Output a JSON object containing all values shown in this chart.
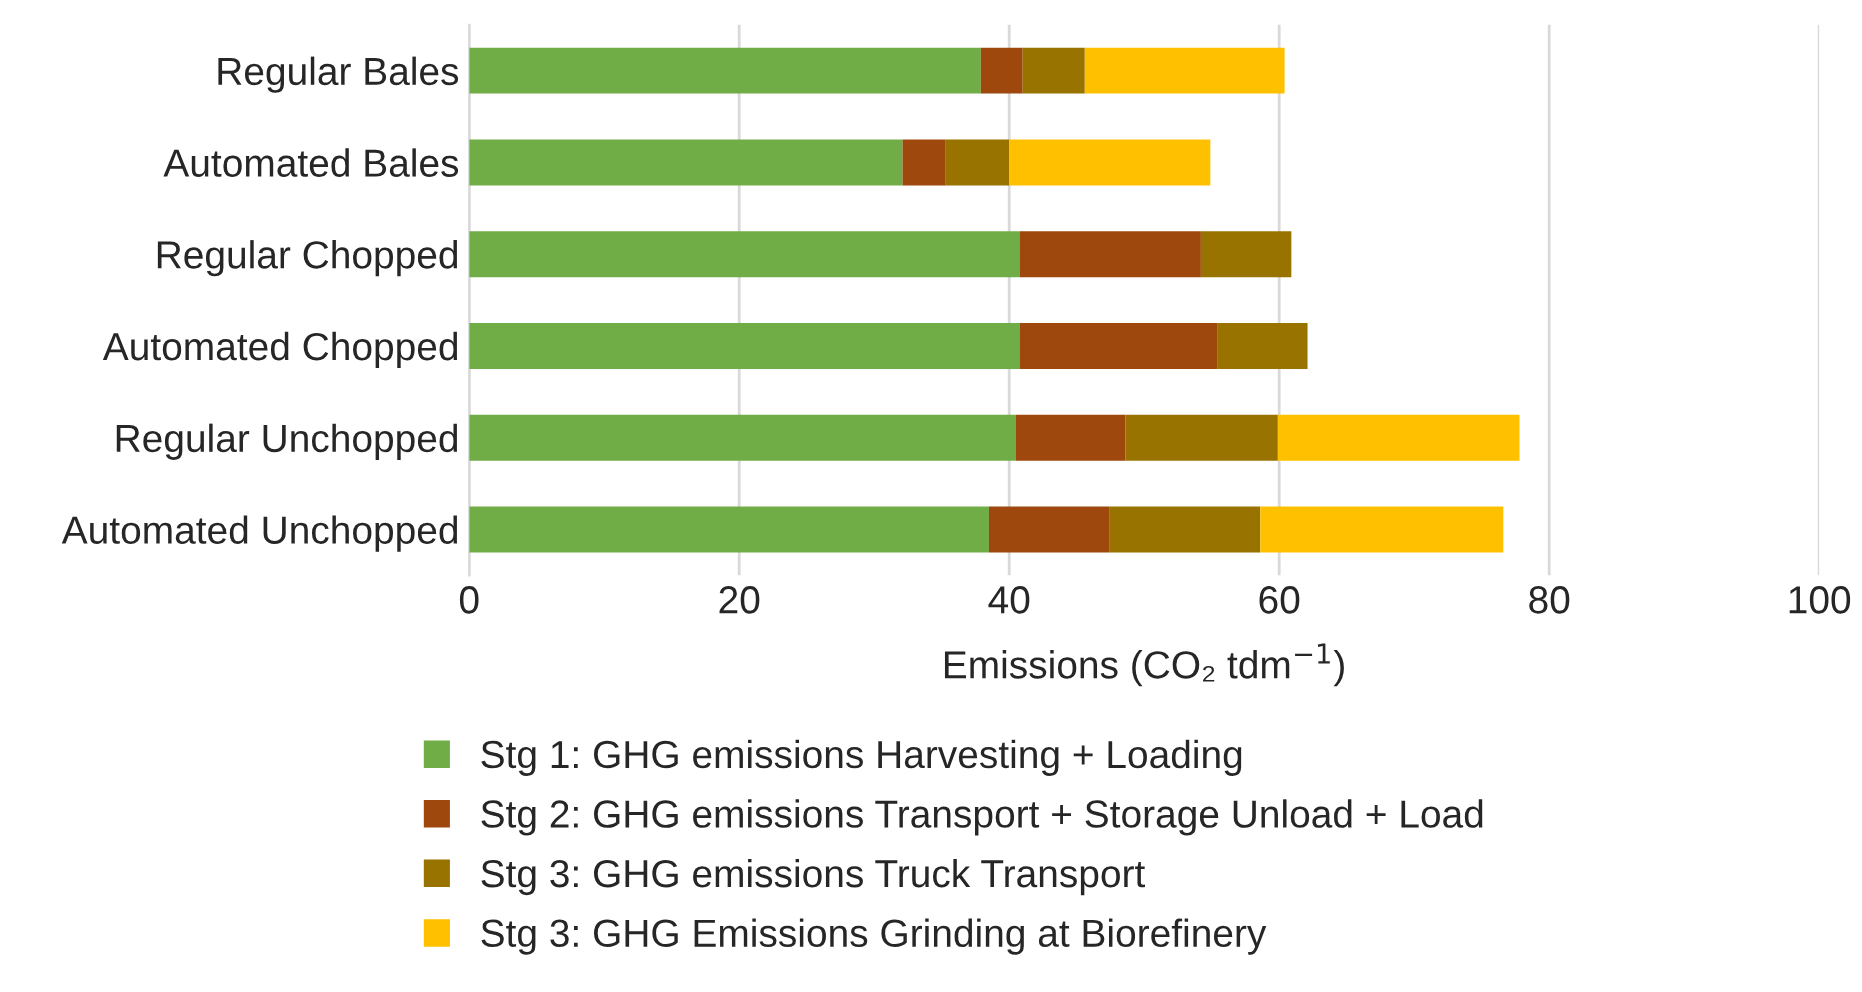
{
  "chart_data": {
    "type": "bar",
    "orientation": "horizontal",
    "stacked": true,
    "xlabel": "Emissions (CO₂ tdm$^{−1}$)",
    "categories": [
      "Regular Bales",
      "Automated Bales",
      "Regular Chopped",
      "Automated Chopped",
      "Regular Unchopped",
      "Automated Unchopped"
    ],
    "series": [
      {
        "name": "Stg 1: GHG emissions Harvesting + Loading",
        "color": "#70ad47",
        "values": [
          37.9,
          32.1,
          40.8,
          40.8,
          40.5,
          38.5
        ]
      },
      {
        "name": "Stg 2: GHG emissions Transport + Storage Unload + Load",
        "color": "#9e480e",
        "values": [
          3.1,
          3.2,
          13.4,
          14.6,
          8.1,
          8.9
        ]
      },
      {
        "name": "Stg 3: GHG emissions Truck Transport",
        "color": "#997300",
        "values": [
          4.6,
          4.7,
          6.7,
          6.7,
          11.3,
          11.2
        ]
      },
      {
        "name": "Stg 3: GHG Emissions Grinding at Biorefinery",
        "color": "#ffc000",
        "values": [
          14.8,
          14.9,
          null,
          null,
          17.9,
          18.0
        ]
      }
    ],
    "xlim": [
      0,
      100
    ],
    "xticks": [
      0,
      20,
      40,
      60,
      80,
      100
    ],
    "grid": "x",
    "legend": "bottom"
  }
}
